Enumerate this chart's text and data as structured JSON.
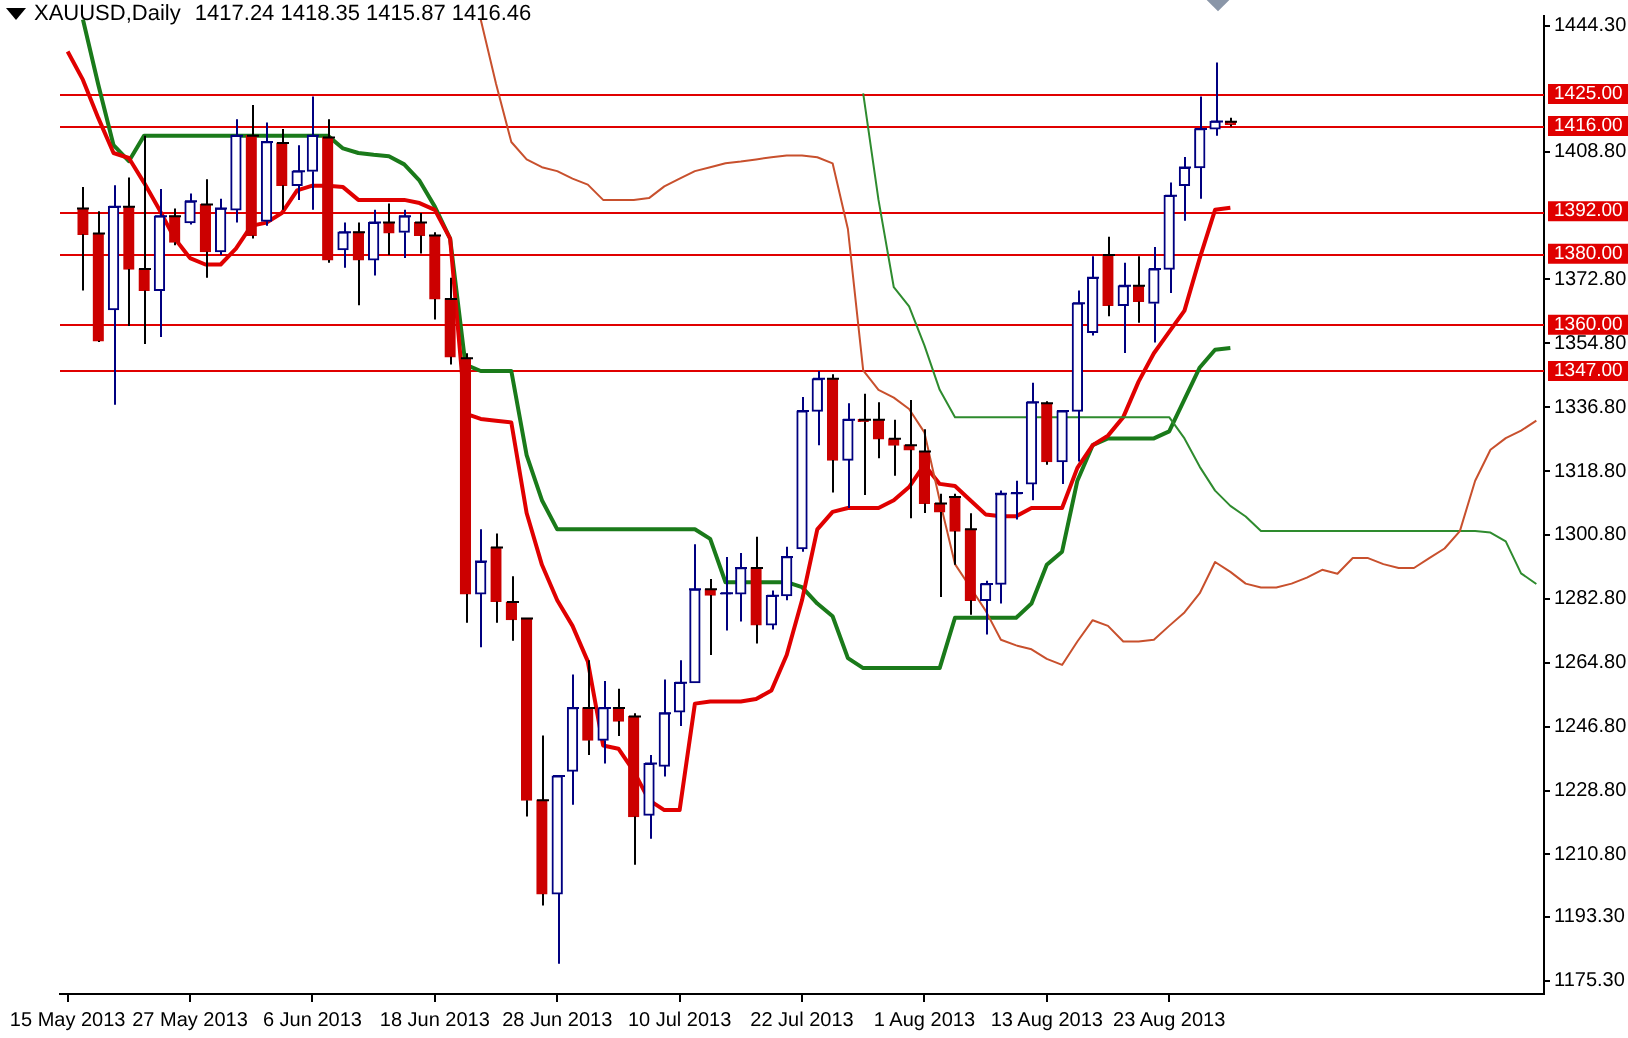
{
  "chart_data": {
    "type": "candlestick",
    "title": "XAUUSD,Daily",
    "subtitle": "1417.24 1418.35 1415.87 1416.46",
    "categories": [
      "15 May 2013",
      null,
      null,
      null,
      null,
      null,
      null,
      null,
      "27 May 2013",
      null,
      null,
      null,
      null,
      null,
      null,
      null,
      "6 Jun 2013",
      null,
      null,
      null,
      null,
      null,
      null,
      null,
      "18 Jun 2013",
      null,
      null,
      null,
      null,
      null,
      null,
      null,
      "28 Jun 2013",
      null,
      null,
      null,
      null,
      null,
      null,
      null,
      "10 Jul 2013",
      null,
      null,
      null,
      null,
      null,
      null,
      null,
      "22 Jul 2013",
      null,
      null,
      null,
      null,
      null,
      null,
      null,
      "1 Aug 2013",
      null,
      null,
      null,
      null,
      null,
      null,
      null,
      "13 Aug 2013",
      null,
      null,
      null,
      null,
      null,
      null,
      null,
      "23 Aug 2013",
      null,
      null,
      null,
      null,
      null,
      null,
      null,
      null,
      null,
      null,
      null,
      null,
      null,
      null,
      null,
      null,
      null,
      null,
      null,
      null,
      null,
      null,
      null,
      null
    ],
    "ylim": [
      1171.5,
      1447
    ],
    "yticks": [
      {
        "value": 1444.3,
        "label": "1444.30"
      },
      {
        "value": 1408.8,
        "label": "1408.80"
      },
      {
        "value": 1372.8,
        "label": "1372.80"
      },
      {
        "value": 1354.8,
        "label": "1354.80"
      },
      {
        "value": 1336.8,
        "label": "1336.80"
      },
      {
        "value": 1318.8,
        "label": "1318.80"
      },
      {
        "value": 1300.8,
        "label": "1300.80"
      },
      {
        "value": 1282.8,
        "label": "1282.80"
      },
      {
        "value": 1264.8,
        "label": "1264.80"
      },
      {
        "value": 1246.8,
        "label": "1246.80"
      },
      {
        "value": 1228.8,
        "label": "1228.80"
      },
      {
        "value": 1210.8,
        "label": "1210.80"
      },
      {
        "value": 1193.3,
        "label": "1193.30"
      },
      {
        "value": 1175.3,
        "label": "1175.30"
      }
    ],
    "ref_lines": [
      {
        "axis": "y",
        "value": 1425,
        "label": "1425.00",
        "color": "#e00000"
      },
      {
        "axis": "y",
        "value": 1416,
        "label": "1416.00",
        "color": "#e00000"
      },
      {
        "axis": "y",
        "value": 1392,
        "label": "1392.00",
        "color": "#e00000"
      },
      {
        "axis": "y",
        "value": 1380,
        "label": "1380.00",
        "color": "#e00000"
      },
      {
        "axis": "y",
        "value": 1360,
        "label": "1360.00",
        "color": "#e00000"
      },
      {
        "axis": "y",
        "value": 1347,
        "label": "1347.00",
        "color": "#e00000"
      }
    ],
    "series": [
      {
        "type": "line",
        "color": "#c8502d",
        "values": [
          null,
          null,
          null,
          null,
          null,
          null,
          null,
          null,
          null,
          null,
          null,
          null,
          null,
          null,
          null,
          null,
          null,
          null,
          null,
          null,
          null,
          null,
          null,
          null,
          null,
          null,
          null,
          1446,
          1427.9,
          1411.5,
          1406.6,
          1404.4,
          1403.3,
          1401.2,
          1399.5,
          1395.2,
          1395.2,
          1395.2,
          1395.7,
          1399,
          1401.2,
          1403.3,
          1404.4,
          1405.5,
          1406,
          1406.6,
          1407.2,
          1407.7,
          1407.7,
          1407.2,
          1405.5,
          1387,
          1347.2,
          1341.7,
          1339.5,
          1336.3,
          1329.7,
          1310.6,
          1292.6,
          1286.1,
          1279.5,
          1271.3,
          1269.7,
          1268.6,
          1265.9,
          1264.2,
          1270.8,
          1276.8,
          1275.2,
          1270.8,
          1270.8,
          1271.3,
          1275.2,
          1279,
          1284.4,
          1293.2,
          1290.4,
          1287.1,
          1286,
          1286,
          1287.1,
          1288.8,
          1291,
          1289.9,
          1294.3,
          1294.3,
          1292.6,
          1291.5,
          1291.5,
          1294.3,
          1297,
          1301.9,
          1316.1,
          1324.8,
          1328.1,
          1330.2,
          1333
        ]
      },
      {
        "type": "line",
        "color": "#2e8b2e",
        "values": [
          null,
          null,
          null,
          null,
          null,
          null,
          null,
          null,
          null,
          null,
          null,
          null,
          null,
          null,
          null,
          null,
          null,
          null,
          null,
          null,
          null,
          null,
          null,
          null,
          null,
          null,
          null,
          null,
          null,
          null,
          null,
          null,
          null,
          null,
          null,
          null,
          null,
          null,
          null,
          null,
          null,
          null,
          null,
          null,
          null,
          null,
          null,
          null,
          null,
          null,
          null,
          null,
          1425.2,
          1395.2,
          1370.6,
          1365.2,
          1354.2,
          1341.7,
          1334,
          1334,
          1334,
          1334,
          1334,
          1334,
          1334,
          1334,
          1334,
          1334,
          1334,
          1334,
          1334,
          1334,
          1334,
          1328,
          1320,
          1313.3,
          1309,
          1306,
          1301.9,
          1301.9,
          1301.9,
          1301.9,
          1301.9,
          1301.9,
          1301.9,
          1301.9,
          1301.9,
          1301.9,
          1301.9,
          1301.9,
          1301.9,
          1301.9,
          1301.9,
          1301.5,
          1299,
          1290,
          1287
        ]
      },
      {
        "type": "line",
        "color": "#e00000",
        "values": [
          1437,
          1429,
          1418.3,
          1408.4,
          1407,
          1400,
          1392.4,
          1384.3,
          1378.8,
          1377,
          1377,
          1381.5,
          1387.9,
          1388.8,
          1391.5,
          1397.9,
          1399.2,
          1399.2,
          1398.8,
          1395.2,
          1395.2,
          1395.2,
          1395.2,
          1394.3,
          1392.4,
          1384.3,
          1335,
          1333.5,
          1333,
          1332.5,
          1307,
          1292.4,
          1282.4,
          1275.2,
          1265.2,
          1241.5,
          1240.6,
          1234.3,
          1226.1,
          1223.3,
          1223.3,
          1253.3,
          1253.9,
          1253.9,
          1253.9,
          1254.6,
          1257,
          1267,
          1282.4,
          1302.4,
          1307.3,
          1308.4,
          1308.4,
          1308.4,
          1310.6,
          1314.3,
          1320.6,
          1315.2,
          1314.6,
          1310.6,
          1306.6,
          1306.1,
          1306.1,
          1308.4,
          1308.4,
          1308.4,
          1319.7,
          1326.1,
          1328.8,
          1334,
          1344,
          1352,
          1358,
          1364,
          1378.8,
          1392.4,
          1393,
          null,
          null,
          null,
          null,
          null,
          null,
          null,
          null,
          null,
          null,
          null,
          null,
          null,
          null,
          null,
          null,
          null,
          null,
          null,
          null
        ]
      },
      {
        "type": "line",
        "color": "#1a7a1a",
        "values": [
          null,
          1446,
          1427.7,
          1410.6,
          1406.1,
          1413.3,
          1413.3,
          1413.3,
          1413.3,
          1413.3,
          1413.3,
          1413.3,
          1413.3,
          1413.3,
          1413.3,
          1413.3,
          1413.3,
          1413.3,
          1409.7,
          1408.4,
          1407.9,
          1407.5,
          1405.2,
          1400.6,
          1393.3,
          1384.3,
          1348.8,
          1347,
          1347,
          1347,
          1323.3,
          1310.6,
          1302.4,
          1302.4,
          1302.4,
          1302.4,
          1302.4,
          1302.4,
          1302.4,
          1302.4,
          1302.4,
          1302.4,
          1299.7,
          1287.5,
          1287.5,
          1287.5,
          1287.5,
          1287.5,
          1286.1,
          1281.5,
          1277.9,
          1266.1,
          1263.3,
          1263.3,
          1263.3,
          1263.3,
          1263.3,
          1263.3,
          1277.5,
          1277.5,
          1277.5,
          1277.5,
          1277.5,
          1281.5,
          1292.4,
          1296.1,
          1316.1,
          1326.1,
          1328,
          1328,
          1328,
          1328,
          1330,
          1339,
          1348,
          1353,
          1353.5,
          null,
          null,
          null,
          null,
          null,
          null,
          null,
          null,
          null,
          null,
          null,
          null,
          null,
          null,
          null,
          null,
          null,
          null,
          null,
          null
        ]
      },
      {
        "type": "candlestick",
        "colors": [
          null,
          "#cc0000",
          "#cc0000",
          "#000080",
          "#cc0000",
          "#cc0000",
          "#000080",
          "#cc0000",
          "#000080",
          "#cc0000",
          "#000080",
          "#000080",
          "#cc0000",
          "#000080",
          "#cc0000",
          "#000080",
          "#000080",
          "#cc0000",
          "#000080",
          "#cc0000",
          "#000080",
          "#cc0000",
          "#000080",
          "#cc0000",
          "#cc0000",
          "#cc0000",
          "#cc0000",
          "#000080",
          "#cc0000",
          "#cc0000",
          "#cc0000",
          "#cc0000",
          "#000080",
          "#000080",
          "#cc0000",
          "#000080",
          "#cc0000",
          "#cc0000",
          "#000080",
          "#000080",
          "#000080",
          "#000080",
          "#cc0000",
          "#000080",
          "#000080",
          "#cc0000",
          "#000080",
          "#000080",
          "#000080",
          "#000080",
          "#cc0000",
          "#000080",
          "#cc0000",
          "#cc0000",
          "#cc0000",
          "#cc0000",
          "#cc0000",
          "#cc0000",
          "#cc0000",
          "#cc0000",
          "#000080",
          "#000080",
          "#000080",
          "#000080",
          "#cc0000",
          "#000080",
          "#000080",
          "#000080",
          "#cc0000",
          "#000080",
          "#cc0000",
          "#000080",
          "#000080",
          "#000080",
          "#000080",
          "#000080",
          "#cc0000",
          null,
          null,
          null,
          null,
          null,
          null,
          null,
          null,
          null,
          null,
          null,
          null,
          null,
          null,
          null,
          null,
          null,
          null,
          null,
          null
        ],
        "ohlc": [
          null,
          [
            1392.8,
            1398.8,
            1369.7,
            1385.5
          ],
          [
            1385.7,
            1392,
            1355.2,
            1355.5
          ],
          [
            1364.3,
            1399.3,
            1337.5,
            1393.3
          ],
          [
            1393.3,
            1401.5,
            1359.7,
            1375.7
          ],
          [
            1375.7,
            1413.3,
            1354.6,
            1369.7
          ],
          [
            1369.7,
            1398.3,
            1356.6,
            1390.6
          ],
          [
            1390.6,
            1392.8,
            1382.4,
            1383.3
          ],
          [
            1388.8,
            1397,
            1388.3,
            1394.8
          ],
          [
            1393.9,
            1401,
            1373.3,
            1380.6
          ],
          [
            1380.6,
            1395.5,
            1379.7,
            1392.8
          ],
          [
            1392.4,
            1417.9,
            1388.8,
            1413.3
          ],
          [
            1413.3,
            1421.9,
            1384.3,
            1385.2
          ],
          [
            1389.2,
            1417,
            1387.9,
            1411.5
          ],
          [
            1411.2,
            1415.2,
            1392.4,
            1399.3
          ],
          [
            1399.3,
            1410.6,
            1395.2,
            1403.3
          ],
          [
            1403.3,
            1424.3,
            1392.4,
            1413.3
          ],
          [
            1412.8,
            1417.9,
            1377.5,
            1378.3
          ],
          [
            1381.2,
            1388.8,
            1376.1,
            1386.1
          ],
          [
            1386.1,
            1388.8,
            1365.5,
            1378.3
          ],
          [
            1378.3,
            1392.4,
            1373.9,
            1388.8
          ],
          [
            1388.8,
            1394.2,
            1379.7,
            1385.9
          ],
          [
            1386.1,
            1392.4,
            1378.8,
            1390.6
          ],
          [
            1388.8,
            1391.5,
            1380.1,
            1385.2
          ],
          [
            1385.2,
            1386.1,
            1361.5,
            1367.3
          ],
          [
            1367.3,
            1373.3,
            1348.8,
            1351
          ],
          [
            1350.6,
            1352,
            1276.1,
            1284.2
          ],
          [
            1284.2,
            1302.4,
            1269.2,
            1293.3
          ],
          [
            1297.3,
            1301.2,
            1276.1,
            1282.1
          ],
          [
            1281.9,
            1289.2,
            1271,
            1277
          ],
          [
            1277.3,
            1277.5,
            1221.5,
            1226.1
          ],
          [
            1226.1,
            1244.3,
            1196.4,
            1199.7
          ],
          [
            1199.7,
            1233,
            1180,
            1232.9
          ],
          [
            1234.3,
            1261.5,
            1224.8,
            1252.1
          ],
          [
            1252.1,
            1265.5,
            1238.8,
            1243
          ],
          [
            1243,
            1259.7,
            1236.4,
            1252.1
          ],
          [
            1252.1,
            1257.5,
            1244.2,
            1248.4
          ],
          [
            1249.7,
            1250.6,
            1207.9,
            1221.5
          ],
          [
            1221.9,
            1238.8,
            1215.2,
            1236.4
          ],
          [
            1235.7,
            1260.1,
            1232.8,
            1250.6
          ],
          [
            1251,
            1265.5,
            1247,
            1259.2
          ],
          [
            1259.2,
            1298.2,
            1259.2,
            1285.5
          ],
          [
            1285.5,
            1288.4,
            1267,
            1283.9
          ],
          [
            1284.2,
            1294.6,
            1273.9,
            1284.4
          ],
          [
            1284.2,
            1295.7,
            1276.4,
            1291.5
          ],
          [
            1291.5,
            1300.3,
            1270.2,
            1275.5
          ],
          [
            1275.5,
            1285.2,
            1274.2,
            1283.7
          ],
          [
            1283.7,
            1297.5,
            1282.4,
            1294.6
          ],
          [
            1297,
            1339.7,
            1296.1,
            1335.7
          ],
          [
            1335.7,
            1347,
            1326.1,
            1344.8
          ],
          [
            1344.8,
            1346.1,
            1312.8,
            1321.9
          ],
          [
            1321.9,
            1337.9,
            1308.4,
            1333.3
          ],
          [
            1333.3,
            1340.6,
            1312.1,
            1332.8
          ],
          [
            1333.3,
            1338.2,
            1322.4,
            1327.9
          ],
          [
            1327.9,
            1333.3,
            1317.5,
            1326.1
          ],
          [
            1326.1,
            1338.8,
            1305.5,
            1324.8
          ],
          [
            1324.3,
            1330.6,
            1307,
            1309.7
          ],
          [
            1309.7,
            1312.4,
            1283.3,
            1307.3
          ],
          [
            1311.5,
            1312.4,
            1292.4,
            1301.9
          ],
          [
            1302.4,
            1306.9,
            1278.3,
            1282.4
          ],
          [
            1282.4,
            1287.9,
            1272.8,
            1287
          ],
          [
            1287,
            1313.3,
            1281.5,
            1312.4
          ],
          [
            1312.4,
            1316.1,
            1305.2,
            1312.6
          ],
          [
            1315.2,
            1343.7,
            1310.6,
            1338.2
          ],
          [
            1337.9,
            1338.5,
            1320.6,
            1321.5
          ],
          [
            1321.5,
            1336,
            1315.2,
            1335.7
          ],
          [
            1335.7,
            1369.7,
            1321.5,
            1366.1
          ],
          [
            1357.9,
            1379.3,
            1357,
            1373.3
          ],
          [
            1379.7,
            1384.8,
            1362.4,
            1365.5
          ],
          [
            1365.5,
            1377.5,
            1352.1,
            1371
          ],
          [
            1371,
            1379.3,
            1360.6,
            1366.6
          ],
          [
            1366.1,
            1381.9,
            1355,
            1375.7
          ],
          [
            1375.7,
            1400.1,
            1369,
            1396.4
          ],
          [
            1399.3,
            1407.3,
            1389.3,
            1404.3
          ],
          [
            1404.3,
            1424.3,
            1395.5,
            1415.2
          ],
          [
            1415.2,
            1433.9,
            1413.3,
            1417.3
          ],
          [
            1417.24,
            1418.35,
            1415.87,
            1416.46
          ],
          null,
          null,
          null,
          null,
          null,
          null,
          null,
          null,
          null,
          null,
          null,
          null,
          null,
          null,
          null,
          null,
          null,
          null,
          null,
          null
        ]
      }
    ]
  }
}
